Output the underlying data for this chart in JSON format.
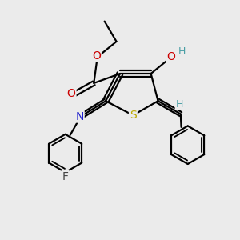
{
  "bg_color": "#ebebeb",
  "atom_colors": {
    "C": "#000000",
    "H": "#4a9fa5",
    "O": "#cc0000",
    "N": "#2020cc",
    "S": "#bbaa00",
    "F": "#444444"
  },
  "bond_color": "#000000",
  "bond_width": 1.6
}
